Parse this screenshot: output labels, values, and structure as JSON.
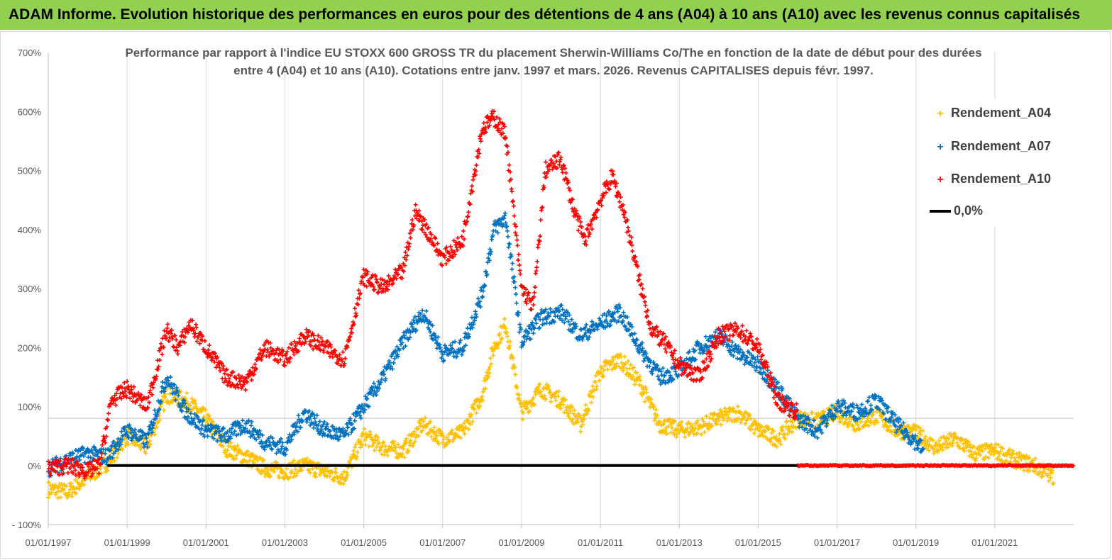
{
  "banner": {
    "title": "ADAM Informe. Evolution historique des performances en euros pour des détentions de 4 ans (A04) à 10 ans (A10) avec les revenus connus capitalisés"
  },
  "chart_data": {
    "type": "scatter",
    "title_lines": [
      "Performance par rapport à l'indice EU STOXX 600 GROSS TR  du placement Sherwin-Williams Co/The en fonction de la date de début pour des durées",
      "entre 4 (A04) et 10 ans (A10). Cotations entre janv. 1997 et mars. 2026. Revenus CAPITALISES depuis févr. 1997."
    ],
    "xlabel": "",
    "ylabel": "",
    "xlim": [
      1997.0,
      2023.0
    ],
    "ylim": [
      -100,
      700
    ],
    "y_ticks": [
      -100,
      0,
      100,
      200,
      300,
      400,
      500,
      600,
      700
    ],
    "y_tick_labels": [
      "- 100%",
      "0%",
      "100%",
      "200%",
      "300%",
      "400%",
      "500%",
      "600%",
      "700%"
    ],
    "x_ticks": [
      1997,
      1999,
      2001,
      2003,
      2005,
      2007,
      2009,
      2011,
      2013,
      2015,
      2017,
      2019,
      2021
    ],
    "x_tick_labels": [
      "01/01/1997",
      "01/01/1999",
      "01/01/2001",
      "01/01/2003",
      "01/01/2005",
      "01/01/2007",
      "01/01/2009",
      "01/01/2011",
      "01/01/2013",
      "01/01/2015",
      "01/01/2017",
      "01/01/2019",
      "01/01/2021"
    ],
    "legend": [
      "Rendement_A04",
      "Rendement_A07",
      "Rendement_A10",
      "0,0%"
    ],
    "colors": {
      "A04": "#ffc000",
      "A07": "#0070c0",
      "A10": "#ff0000",
      "zero": "#000000"
    },
    "series": [
      {
        "name": "Rendement_A04",
        "color": "#ffc000",
        "x": [
          1997.0,
          1997.5,
          1998.0,
          1998.5,
          1999.0,
          1999.5,
          2000.0,
          2000.5,
          2001.0,
          2001.5,
          2002.0,
          2002.5,
          2003.0,
          2003.5,
          2004.0,
          2004.5,
          2005.0,
          2005.5,
          2006.0,
          2006.5,
          2007.0,
          2007.5,
          2008.0,
          2008.3,
          2008.6,
          2009.0,
          2009.5,
          2010.0,
          2010.5,
          2011.0,
          2011.5,
          2012.0,
          2012.5,
          2013.0,
          2013.5,
          2014.0,
          2014.5,
          2015.0,
          2015.5,
          2016.0,
          2016.5,
          2017.0,
          2017.5,
          2018.0,
          2018.5,
          2019.0,
          2019.5,
          2020.0,
          2020.5,
          2021.0,
          2021.5,
          2022.0,
          2022.5
        ],
        "y": [
          -40,
          -45,
          -20,
          5,
          50,
          30,
          120,
          110,
          80,
          30,
          15,
          -5,
          -10,
          0,
          -10,
          -20,
          50,
          30,
          25,
          70,
          45,
          55,
          120,
          200,
          240,
          90,
          130,
          110,
          70,
          160,
          180,
          140,
          70,
          60,
          65,
          80,
          90,
          60,
          45,
          80,
          75,
          90,
          70,
          85,
          60,
          55,
          30,
          45,
          20,
          25,
          10,
          0,
          -20
        ]
      },
      {
        "name": "Rendement_A07",
        "color": "#0070c0",
        "x": [
          1997.0,
          1997.5,
          1998.0,
          1998.5,
          1999.0,
          1999.5,
          2000.0,
          2000.5,
          2001.0,
          2001.5,
          2002.0,
          2002.5,
          2003.0,
          2003.5,
          2004.0,
          2004.5,
          2005.0,
          2005.5,
          2006.0,
          2006.5,
          2007.0,
          2007.5,
          2008.0,
          2008.3,
          2008.6,
          2009.0,
          2009.5,
          2010.0,
          2010.5,
          2011.0,
          2011.5,
          2012.0,
          2012.5,
          2013.0,
          2013.5,
          2014.0,
          2014.5,
          2015.0,
          2015.5,
          2016.0,
          2016.5,
          2017.0,
          2017.5,
          2018.0,
          2018.5,
          2019.0,
          2019.2
        ],
        "y": [
          -5,
          10,
          20,
          15,
          60,
          40,
          150,
          90,
          60,
          50,
          70,
          40,
          30,
          90,
          60,
          50,
          100,
          150,
          210,
          260,
          190,
          200,
          290,
          400,
          420,
          210,
          250,
          260,
          220,
          240,
          260,
          200,
          150,
          160,
          200,
          220,
          190,
          170,
          130,
          80,
          60,
          100,
          90,
          110,
          70,
          40,
          25
        ]
      },
      {
        "name": "Rendement_A10",
        "color": "#ff0000",
        "x": [
          1997.0,
          1997.5,
          1998.0,
          1998.3,
          1998.6,
          1999.0,
          1999.5,
          2000.0,
          2000.3,
          2000.6,
          2001.0,
          2001.5,
          2002.0,
          2002.5,
          2003.0,
          2003.5,
          2004.0,
          2004.5,
          2005.0,
          2005.5,
          2006.0,
          2006.3,
          2006.6,
          2007.0,
          2007.5,
          2008.0,
          2008.3,
          2008.6,
          2009.0,
          2009.3,
          2009.6,
          2010.0,
          2010.3,
          2010.6,
          2011.0,
          2011.3,
          2011.6,
          2012.0,
          2012.3,
          2012.6,
          2013.0,
          2013.5,
          2014.0,
          2014.5,
          2015.0,
          2015.5,
          2016.0
        ],
        "y": [
          -5,
          0,
          -10,
          0,
          110,
          130,
          100,
          230,
          200,
          240,
          200,
          150,
          140,
          200,
          180,
          220,
          200,
          180,
          320,
          300,
          330,
          430,
          400,
          350,
          380,
          570,
          590,
          560,
          300,
          270,
          500,
          520,
          440,
          380,
          450,
          490,
          430,
          310,
          230,
          210,
          170,
          150,
          220,
          230,
          200,
          110,
          90
        ]
      },
      {
        "name": "Rendement_A10 (nul)",
        "color": "#ff0000",
        "x": [
          2016.0,
          2023.0
        ],
        "y": [
          0,
          0
        ],
        "flat": true
      },
      {
        "name": "0,0%",
        "color": "#000000",
        "x": [
          1998.5,
          2016.0
        ],
        "y": [
          0,
          0
        ],
        "line": true
      }
    ]
  }
}
